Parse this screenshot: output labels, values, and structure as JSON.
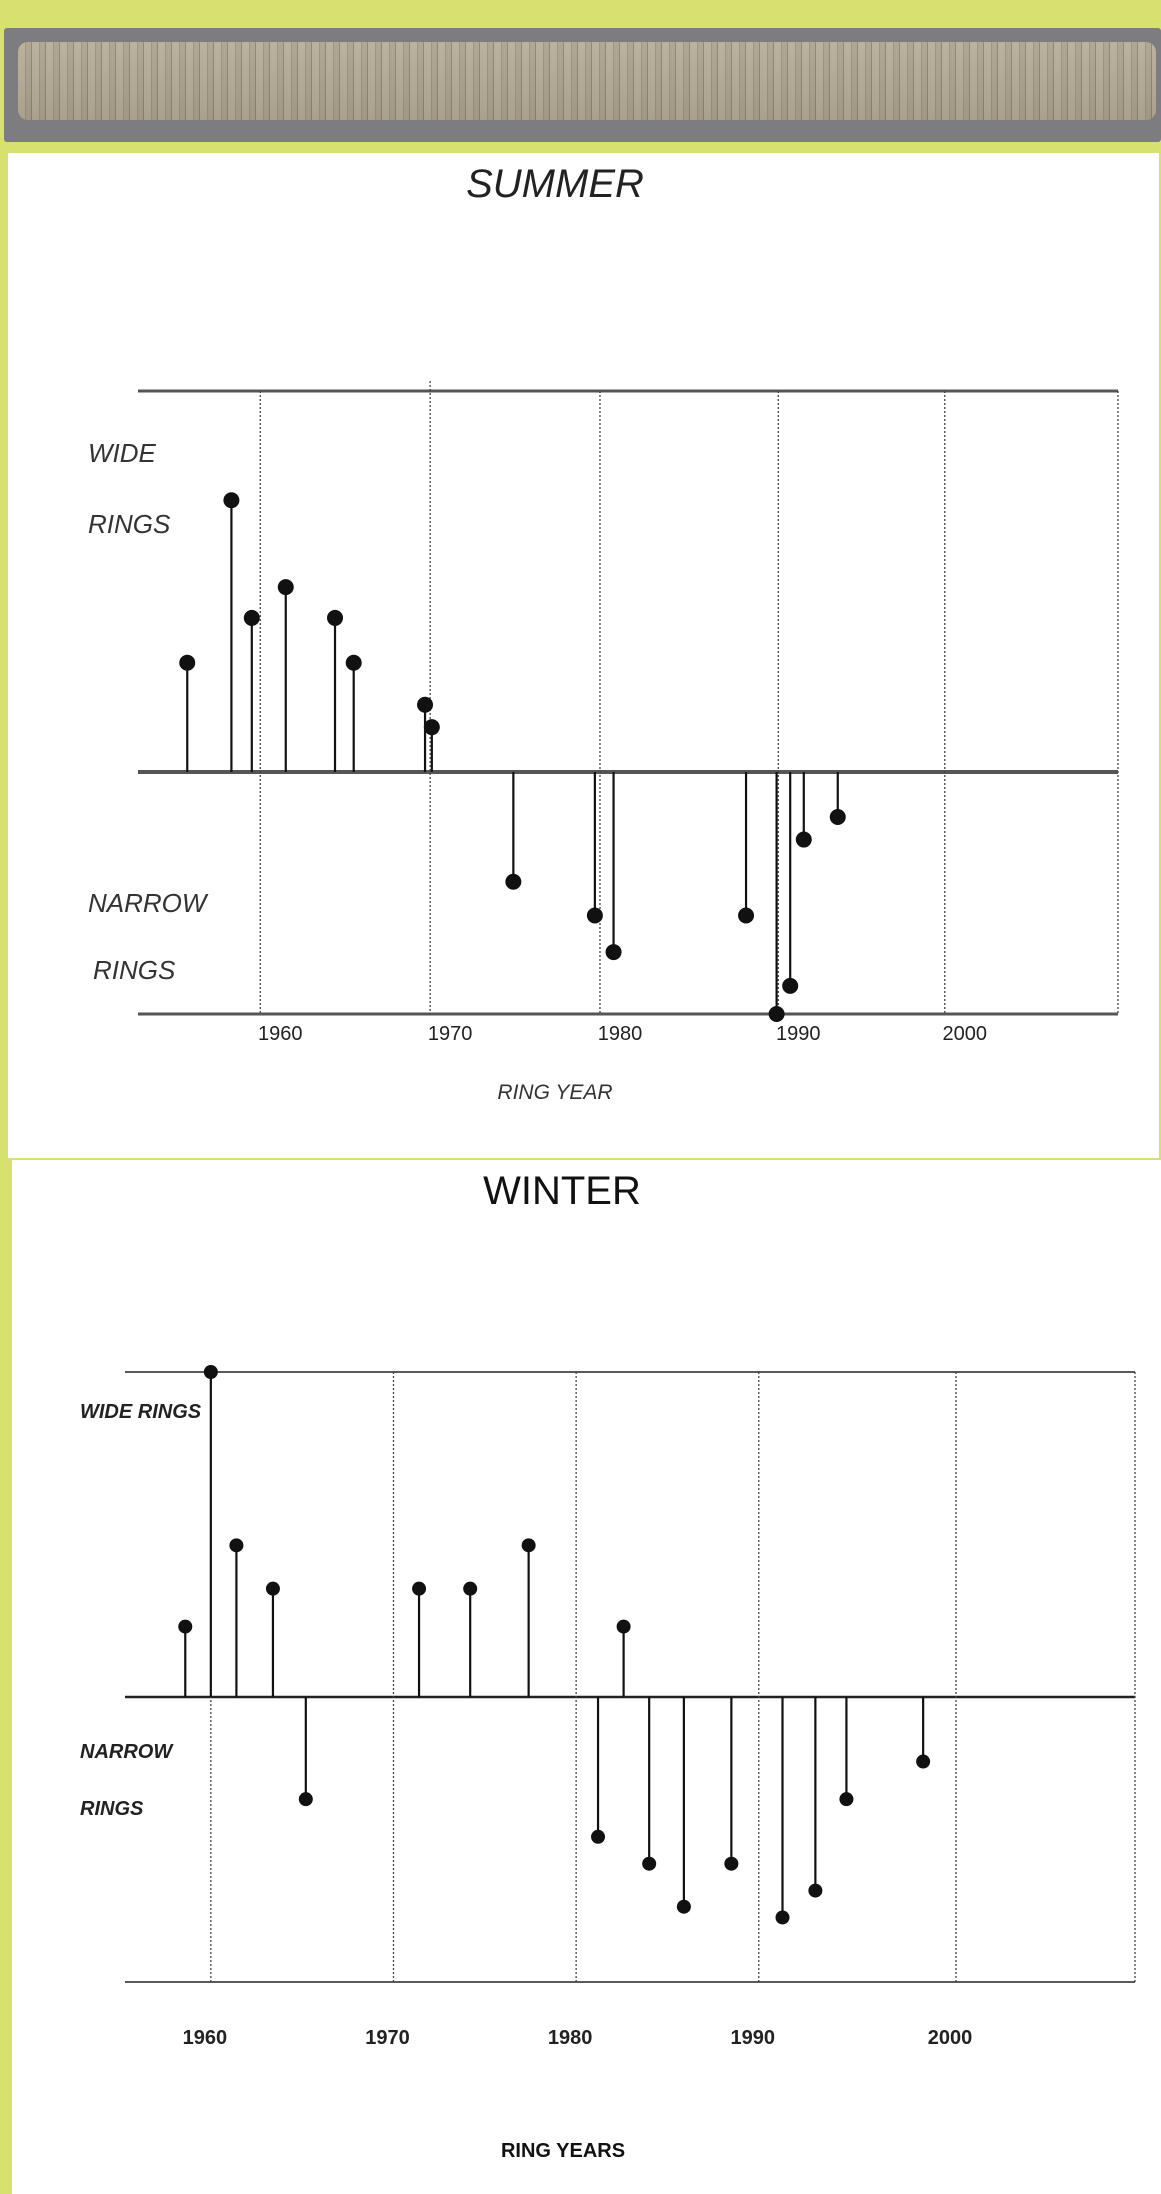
{
  "photo": {
    "description_icon": "tree-core-photo"
  },
  "chart_data": [
    {
      "type": "stem",
      "title": "SUMMER",
      "xlabel": "RING YEAR",
      "ylabel_top": [
        "WIDE",
        "RINGS"
      ],
      "ylabel_bottom": [
        "NARROW",
        "RINGS"
      ],
      "x_ticks": [
        "1960",
        "1970",
        "1980",
        "1990",
        "2000"
      ],
      "xlim": [
        1952.3,
        2010
      ],
      "ylim": [
        -4.3,
        6.8
      ],
      "gridlines": [
        1959.5,
        1969.5,
        1979.5,
        1990,
        1999.8,
        2010
      ],
      "points": [
        {
          "x": 1955.2,
          "y": 1.95
        },
        {
          "x": 1957.8,
          "y": 4.85
        },
        {
          "x": 1959.0,
          "y": 2.75
        },
        {
          "x": 1961.0,
          "y": 3.3
        },
        {
          "x": 1963.9,
          "y": 2.75
        },
        {
          "x": 1965.0,
          "y": 1.95
        },
        {
          "x": 1969.2,
          "y": 1.2
        },
        {
          "x": 1969.6,
          "y": 0.8
        },
        {
          "x": 1974.4,
          "y": -1.95
        },
        {
          "x": 1979.2,
          "y": -2.55
        },
        {
          "x": 1980.3,
          "y": -3.2
        },
        {
          "x": 1988.1,
          "y": -2.55
        },
        {
          "x": 1989.9,
          "y": -4.3
        },
        {
          "x": 1990.7,
          "y": -3.8
        },
        {
          "x": 1991.5,
          "y": -1.2
        },
        {
          "x": 1993.5,
          "y": -0.8
        }
      ]
    },
    {
      "type": "stem",
      "title": "WINTER",
      "xlabel": "RING YEARS",
      "ylabel_top": [
        "WIDE RINGS"
      ],
      "ylabel_bottom": [
        "NARROW",
        "RINGS"
      ],
      "x_ticks": [
        "1960",
        "1970",
        "1980",
        "1990",
        "2000"
      ],
      "xlim": [
        1955.5,
        2010.8
      ],
      "ylim": [
        -5.3,
        6.0
      ],
      "gridlines": [
        1960.2,
        1970.2,
        1980.2,
        1990.2,
        2001,
        2010.8
      ],
      "points": [
        {
          "x": 1958.8,
          "y": 1.3
        },
        {
          "x": 1960.2,
          "y": 6.0
        },
        {
          "x": 1961.6,
          "y": 2.8
        },
        {
          "x": 1963.6,
          "y": 2.0
        },
        {
          "x": 1965.4,
          "y": -1.9
        },
        {
          "x": 1971.6,
          "y": 2.0
        },
        {
          "x": 1974.4,
          "y": 2.0
        },
        {
          "x": 1977.6,
          "y": 2.8
        },
        {
          "x": 1981.4,
          "y": -2.6
        },
        {
          "x": 1982.8,
          "y": 1.3
        },
        {
          "x": 1984.2,
          "y": -3.1
        },
        {
          "x": 1986.1,
          "y": -3.9
        },
        {
          "x": 1988.7,
          "y": -3.1
        },
        {
          "x": 1991.5,
          "y": -4.1
        },
        {
          "x": 1993.3,
          "y": -3.6
        },
        {
          "x": 1995.0,
          "y": -1.9
        },
        {
          "x": 1999.2,
          "y": -1.2
        }
      ]
    }
  ]
}
